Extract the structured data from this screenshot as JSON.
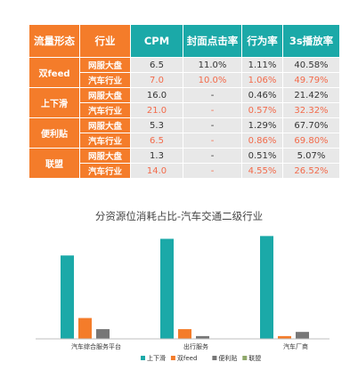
{
  "table": {
    "headers": [
      "流量形态",
      "行业",
      "CPM",
      "封面点击率",
      "行为率",
      "3s播放率"
    ],
    "groups": [
      {
        "form": "双feed",
        "rows": [
          {
            "industry": "网服大盘",
            "cpm": "6.5",
            "ctr": "11.0%",
            "action": "1.11%",
            "play3s": "40.58%"
          },
          {
            "industry": "汽车行业",
            "cpm": "7.0",
            "ctr": "10.0%",
            "action": "1.06%",
            "play3s": "49.79%"
          }
        ]
      },
      {
        "form": "上下滑",
        "rows": [
          {
            "industry": "网服大盘",
            "cpm": "16.0",
            "ctr": "-",
            "action": "0.46%",
            "play3s": "21.42%"
          },
          {
            "industry": "汽车行业",
            "cpm": "21.0",
            "ctr": "-",
            "action": "0.57%",
            "play3s": "32.32%"
          }
        ]
      },
      {
        "form": "便利贴",
        "rows": [
          {
            "industry": "网服大盘",
            "cpm": "5.3",
            "ctr": "-",
            "action": "1.29%",
            "play3s": "67.70%"
          },
          {
            "industry": "汽车行业",
            "cpm": "6.5",
            "ctr": "-",
            "action": "0.86%",
            "play3s": "69.80%"
          }
        ]
      },
      {
        "form": "联盟",
        "rows": [
          {
            "industry": "网服大盘",
            "cpm": "1.3",
            "ctr": "-",
            "action": "0.51%",
            "play3s": "5.07%"
          },
          {
            "industry": "汽车行业",
            "cpm": "14.0",
            "ctr": "-",
            "action": "4.55%",
            "play3s": "26.52%"
          }
        ]
      }
    ]
  },
  "chart_data": {
    "type": "bar",
    "title": "分资源位消耗占比-汽车交通二级行业",
    "categories": [
      "汽车综合服务平台",
      "出行服务",
      "汽车厂商"
    ],
    "series": [
      {
        "name": "上下滑",
        "color": "#1ba9a8",
        "values": [
          0.6,
          0.72,
          0.74
        ]
      },
      {
        "name": "双feed",
        "color": "#f47c2a",
        "values": [
          0.15,
          0.07,
          0.02
        ]
      },
      {
        "name": "便利贴",
        "color": "#777777",
        "values": [
          0.07,
          0.02,
          0.05
        ]
      },
      {
        "name": "联盟",
        "color": "#8fa86a",
        "values": [
          0.0,
          0.0,
          0.0
        ]
      }
    ],
    "ylim": [
      0,
      0.8
    ],
    "grid": false,
    "legend": "bottom"
  }
}
